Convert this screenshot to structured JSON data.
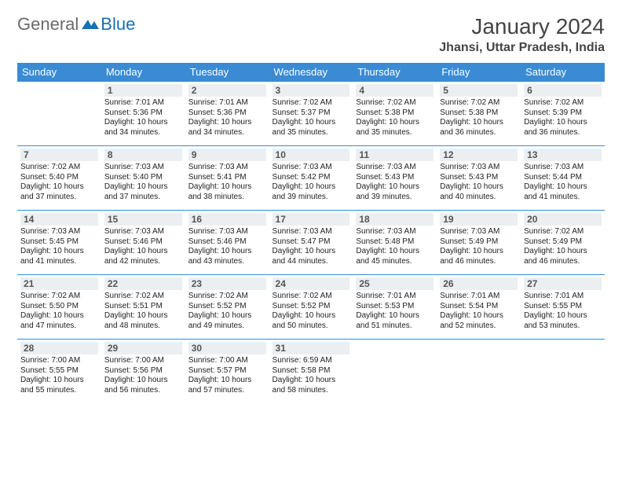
{
  "brand": {
    "part1": "General",
    "part2": "Blue"
  },
  "title": "January 2024",
  "location": "Jhansi, Uttar Pradesh, India",
  "colors": {
    "header_bg": "#3b8bd4",
    "header_text": "#ffffff",
    "daynum_bg": "#eceff1",
    "border": "#3b8bd4",
    "logo_gray": "#6a6a6a",
    "logo_blue": "#1a6fb5"
  },
  "typography": {
    "title_fontsize": 28,
    "location_fontsize": 16,
    "header_fontsize": 13,
    "daynum_fontsize": 12,
    "cell_fontsize": 10
  },
  "weekdays": [
    "Sunday",
    "Monday",
    "Tuesday",
    "Wednesday",
    "Thursday",
    "Friday",
    "Saturday"
  ],
  "first_weekday_index": 1,
  "days": [
    {
      "n": 1,
      "sunrise": "7:01 AM",
      "sunset": "5:36 PM",
      "daylight": "10 hours and 34 minutes."
    },
    {
      "n": 2,
      "sunrise": "7:01 AM",
      "sunset": "5:36 PM",
      "daylight": "10 hours and 34 minutes."
    },
    {
      "n": 3,
      "sunrise": "7:02 AM",
      "sunset": "5:37 PM",
      "daylight": "10 hours and 35 minutes."
    },
    {
      "n": 4,
      "sunrise": "7:02 AM",
      "sunset": "5:38 PM",
      "daylight": "10 hours and 35 minutes."
    },
    {
      "n": 5,
      "sunrise": "7:02 AM",
      "sunset": "5:38 PM",
      "daylight": "10 hours and 36 minutes."
    },
    {
      "n": 6,
      "sunrise": "7:02 AM",
      "sunset": "5:39 PM",
      "daylight": "10 hours and 36 minutes."
    },
    {
      "n": 7,
      "sunrise": "7:02 AM",
      "sunset": "5:40 PM",
      "daylight": "10 hours and 37 minutes."
    },
    {
      "n": 8,
      "sunrise": "7:03 AM",
      "sunset": "5:40 PM",
      "daylight": "10 hours and 37 minutes."
    },
    {
      "n": 9,
      "sunrise": "7:03 AM",
      "sunset": "5:41 PM",
      "daylight": "10 hours and 38 minutes."
    },
    {
      "n": 10,
      "sunrise": "7:03 AM",
      "sunset": "5:42 PM",
      "daylight": "10 hours and 39 minutes."
    },
    {
      "n": 11,
      "sunrise": "7:03 AM",
      "sunset": "5:43 PM",
      "daylight": "10 hours and 39 minutes."
    },
    {
      "n": 12,
      "sunrise": "7:03 AM",
      "sunset": "5:43 PM",
      "daylight": "10 hours and 40 minutes."
    },
    {
      "n": 13,
      "sunrise": "7:03 AM",
      "sunset": "5:44 PM",
      "daylight": "10 hours and 41 minutes."
    },
    {
      "n": 14,
      "sunrise": "7:03 AM",
      "sunset": "5:45 PM",
      "daylight": "10 hours and 41 minutes."
    },
    {
      "n": 15,
      "sunrise": "7:03 AM",
      "sunset": "5:46 PM",
      "daylight": "10 hours and 42 minutes."
    },
    {
      "n": 16,
      "sunrise": "7:03 AM",
      "sunset": "5:46 PM",
      "daylight": "10 hours and 43 minutes."
    },
    {
      "n": 17,
      "sunrise": "7:03 AM",
      "sunset": "5:47 PM",
      "daylight": "10 hours and 44 minutes."
    },
    {
      "n": 18,
      "sunrise": "7:03 AM",
      "sunset": "5:48 PM",
      "daylight": "10 hours and 45 minutes."
    },
    {
      "n": 19,
      "sunrise": "7:03 AM",
      "sunset": "5:49 PM",
      "daylight": "10 hours and 46 minutes."
    },
    {
      "n": 20,
      "sunrise": "7:02 AM",
      "sunset": "5:49 PM",
      "daylight": "10 hours and 46 minutes."
    },
    {
      "n": 21,
      "sunrise": "7:02 AM",
      "sunset": "5:50 PM",
      "daylight": "10 hours and 47 minutes."
    },
    {
      "n": 22,
      "sunrise": "7:02 AM",
      "sunset": "5:51 PM",
      "daylight": "10 hours and 48 minutes."
    },
    {
      "n": 23,
      "sunrise": "7:02 AM",
      "sunset": "5:52 PM",
      "daylight": "10 hours and 49 minutes."
    },
    {
      "n": 24,
      "sunrise": "7:02 AM",
      "sunset": "5:52 PM",
      "daylight": "10 hours and 50 minutes."
    },
    {
      "n": 25,
      "sunrise": "7:01 AM",
      "sunset": "5:53 PM",
      "daylight": "10 hours and 51 minutes."
    },
    {
      "n": 26,
      "sunrise": "7:01 AM",
      "sunset": "5:54 PM",
      "daylight": "10 hours and 52 minutes."
    },
    {
      "n": 27,
      "sunrise": "7:01 AM",
      "sunset": "5:55 PM",
      "daylight": "10 hours and 53 minutes."
    },
    {
      "n": 28,
      "sunrise": "7:00 AM",
      "sunset": "5:55 PM",
      "daylight": "10 hours and 55 minutes."
    },
    {
      "n": 29,
      "sunrise": "7:00 AM",
      "sunset": "5:56 PM",
      "daylight": "10 hours and 56 minutes."
    },
    {
      "n": 30,
      "sunrise": "7:00 AM",
      "sunset": "5:57 PM",
      "daylight": "10 hours and 57 minutes."
    },
    {
      "n": 31,
      "sunrise": "6:59 AM",
      "sunset": "5:58 PM",
      "daylight": "10 hours and 58 minutes."
    }
  ],
  "labels": {
    "sunrise": "Sunrise:",
    "sunset": "Sunset:",
    "daylight": "Daylight:"
  }
}
